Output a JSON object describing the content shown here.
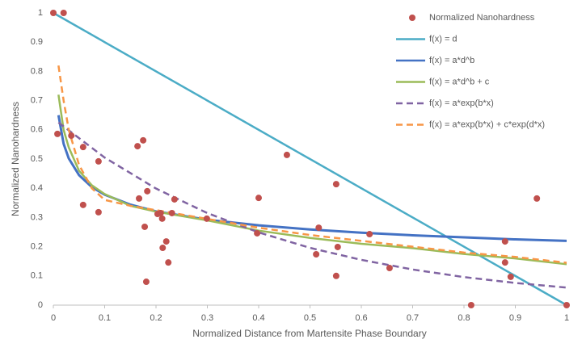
{
  "chart_data": {
    "type": "scatter",
    "xlabel": "Normalized Distance from Martensite Phase Boundary",
    "ylabel": "Normalized Nanohardness",
    "xlim": [
      0,
      1
    ],
    "xticks": [
      0,
      0.1,
      0.2,
      0.3,
      0.4,
      0.5,
      0.6,
      0.7,
      0.8,
      0.9,
      1
    ],
    "ylim": [
      0,
      1
    ],
    "yticks": [
      0,
      0.1,
      0.2,
      0.3,
      0.4,
      0.5,
      0.6,
      0.7,
      0.8,
      0.9,
      1
    ],
    "grid": false,
    "legend": "upper right",
    "series": [
      {
        "name": "Normalized Nanohardness",
        "color": "#c0504d",
        "type": "scatter",
        "x": [
          0,
          0.02,
          0.008,
          0.035,
          0.058,
          0.058,
          0.088,
          0.088,
          0.164,
          0.175,
          0.167,
          0.183,
          0.178,
          0.181,
          0.203,
          0.209,
          0.212,
          0.22,
          0.213,
          0.224,
          0.231,
          0.236,
          0.299,
          0.397,
          0.4,
          0.455,
          0.512,
          0.517,
          0.551,
          0.551,
          0.554,
          0.616,
          0.655,
          0.814,
          0.88,
          0.88,
          0.891,
          0.942,
          1
        ],
        "values": [
          1,
          1,
          0.586,
          0.58,
          0.541,
          0.343,
          0.492,
          0.318,
          0.544,
          0.564,
          0.365,
          0.39,
          0.268,
          0.08,
          0.312,
          0.315,
          0.296,
          0.218,
          0.196,
          0.146,
          0.315,
          0.362,
          0.296,
          0.246,
          0.367,
          0.514,
          0.174,
          0.265,
          0.414,
          0.1,
          0.199,
          0.243,
          0.127,
          0,
          0.218,
          0.146,
          0.097,
          0.365,
          0
        ]
      },
      {
        "name": "f(x) = d",
        "color": "#4bacc6",
        "type": "line",
        "dash": false,
        "x": [
          0,
          1
        ],
        "values": [
          1,
          0
        ]
      },
      {
        "name": "f(x) = a*d^b",
        "color": "#4472c4",
        "type": "line",
        "dash": false,
        "x": [
          0.01,
          0.02,
          0.03,
          0.05,
          0.075,
          0.1,
          0.15,
          0.2,
          0.3,
          0.4,
          0.5,
          0.6,
          0.7,
          0.8,
          0.9,
          1
        ],
        "values": [
          0.65,
          0.552,
          0.502,
          0.445,
          0.404,
          0.378,
          0.344,
          0.321,
          0.292,
          0.273,
          0.259,
          0.248,
          0.239,
          0.232,
          0.225,
          0.22
        ]
      },
      {
        "name": "f(x) = a*d^b + c",
        "color": "#9bbb59",
        "type": "line",
        "dash": false,
        "x": [
          0.01,
          0.02,
          0.03,
          0.05,
          0.075,
          0.1,
          0.15,
          0.2,
          0.3,
          0.4,
          0.5,
          0.6,
          0.7,
          0.8,
          0.9,
          1
        ],
        "values": [
          0.72,
          0.6,
          0.54,
          0.46,
          0.41,
          0.38,
          0.34,
          0.32,
          0.29,
          0.255,
          0.23,
          0.21,
          0.195,
          0.175,
          0.16,
          0.14
        ]
      },
      {
        "name": "f(x) = a*exp(b*x)",
        "color": "#8064a2",
        "type": "line",
        "dash": true,
        "x": [
          0.01,
          0.1,
          0.2,
          0.3,
          0.4,
          0.5,
          0.6,
          0.7,
          0.8,
          0.9,
          1
        ],
        "values": [
          0.625,
          0.505,
          0.399,
          0.315,
          0.249,
          0.196,
          0.155,
          0.122,
          0.096,
          0.076,
          0.06
        ]
      },
      {
        "name": "f(x) = a*exp(b*x) + c*exp(d*x)",
        "color": "#f79646",
        "type": "line",
        "dash": true,
        "x": [
          0.01,
          0.02,
          0.03,
          0.05,
          0.075,
          0.1,
          0.15,
          0.2,
          0.3,
          0.4,
          0.5,
          0.6,
          0.7,
          0.8,
          0.9,
          1
        ],
        "values": [
          0.82,
          0.7,
          0.6,
          0.48,
          0.4,
          0.36,
          0.34,
          0.325,
          0.295,
          0.265,
          0.24,
          0.22,
          0.2,
          0.18,
          0.165,
          0.145
        ]
      }
    ]
  }
}
